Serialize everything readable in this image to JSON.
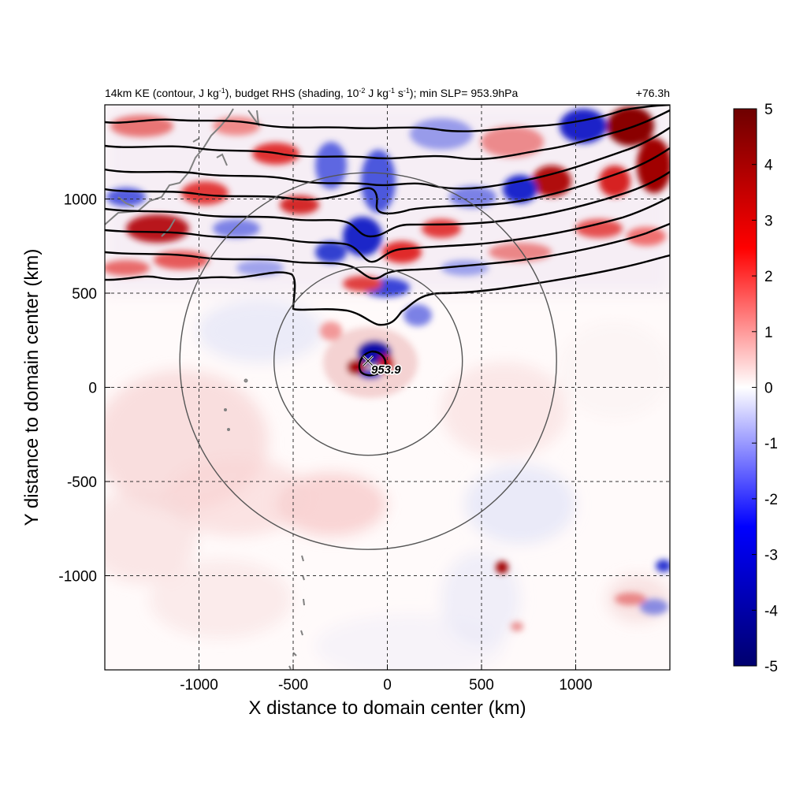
{
  "chart_data": {
    "type": "heatmap",
    "title_left": "14km KE (contour, J kg",
    "title_sup1": "-1",
    "title_mid1": "), budget RHS (shading, 10",
    "title_sup2": "-2",
    "title_mid2": " J kg",
    "title_sup3": "-1",
    "title_mid3": " s",
    "title_sup4": "-1",
    "title_end": "); min SLP= 953.9hPa",
    "title_right": "+76.3h",
    "xlabel": "X distance to domain center (km)",
    "ylabel": "Y distance to domain center (km)",
    "xlim": [
      -1500,
      1500
    ],
    "ylim": [
      -1500,
      1500
    ],
    "x_ticks": [
      -1000,
      -500,
      0,
      500,
      1000
    ],
    "y_ticks": [
      -1000,
      -500,
      0,
      500,
      1000
    ],
    "x_tick_labels": [
      "-1000",
      "-500",
      "0",
      "500",
      "1000"
    ],
    "y_tick_labels": [
      "-1000",
      "-500",
      "0",
      "500",
      "1000"
    ],
    "grid": true,
    "colorbar": {
      "min": -5,
      "max": 5,
      "ticks": [
        5,
        4,
        3,
        2,
        1,
        0,
        -1,
        -2,
        -3,
        -4,
        -5
      ],
      "tick_labels": [
        "5",
        "4",
        "3",
        "2",
        "1",
        "0",
        "-1",
        "-2",
        "-3",
        "-4",
        "-5"
      ],
      "colors": [
        "#00006e",
        "#0000ff",
        "#ffffff",
        "#ff0000",
        "#6e0000"
      ]
    },
    "storm_center": {
      "x": -100,
      "y": 130,
      "marker": "x",
      "label": "953.9"
    },
    "range_circles_km": [
      500,
      1000
    ],
    "ke_contour_color": "#000000",
    "coastline_color": "#808080"
  }
}
